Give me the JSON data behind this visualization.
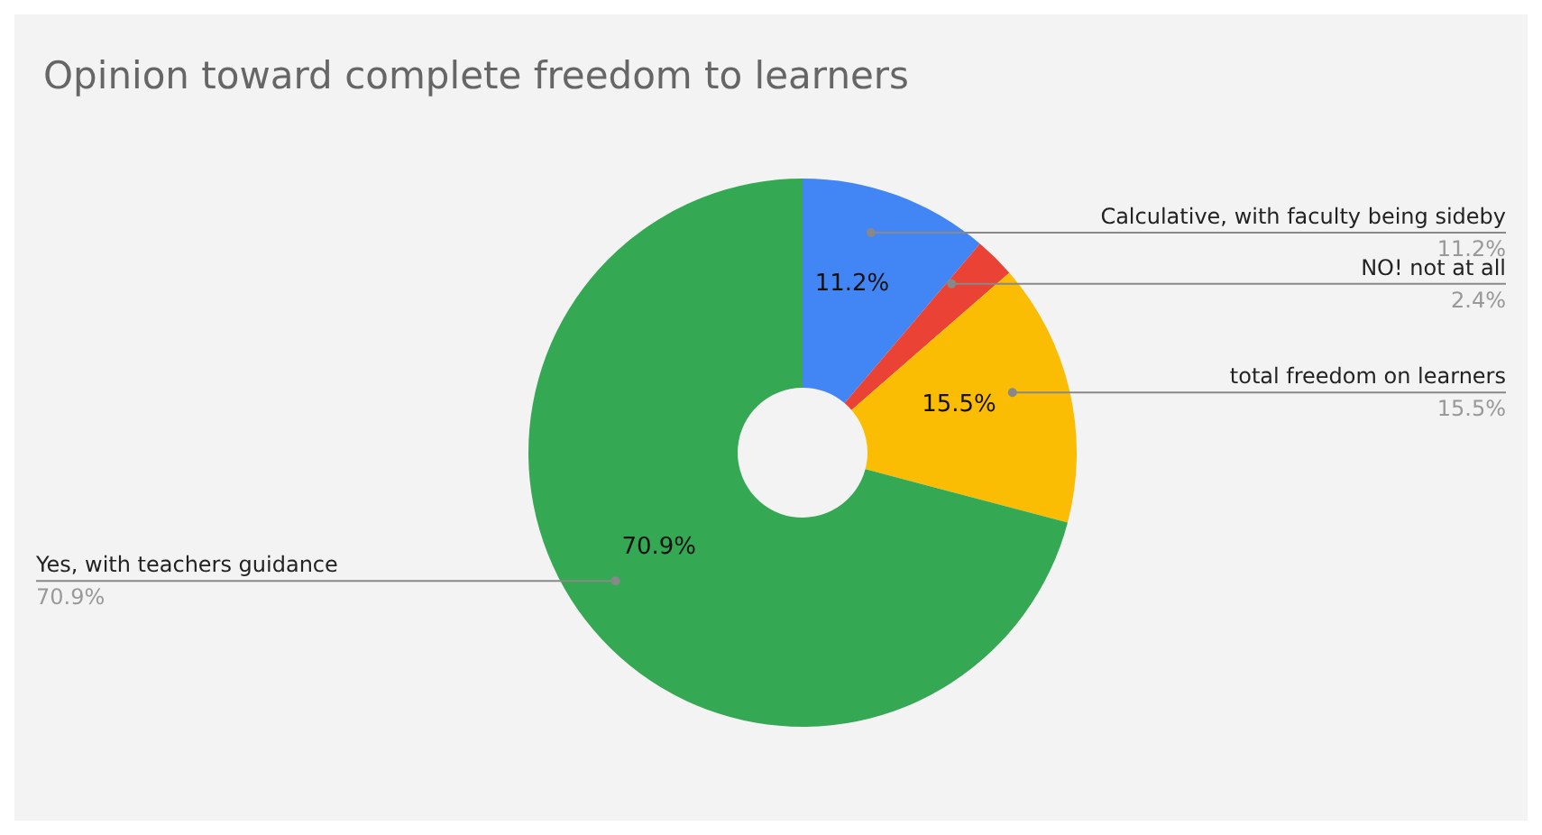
{
  "chart_data": {
    "type": "donut",
    "title": "Opinion toward complete freedom to learners",
    "categories": [
      "Calculative, with faculty being sideby",
      "NO! not at all",
      "total freedom on learners",
      "Yes, with teachers guidance"
    ],
    "values": [
      11.2,
      2.4,
      15.5,
      70.9
    ],
    "colors": [
      "#4285f4",
      "#ea4335",
      "#fbbc04",
      "#34a853"
    ],
    "value_labels": [
      "11.2%",
      "2.4%",
      "15.5%",
      "70.9%"
    ]
  }
}
